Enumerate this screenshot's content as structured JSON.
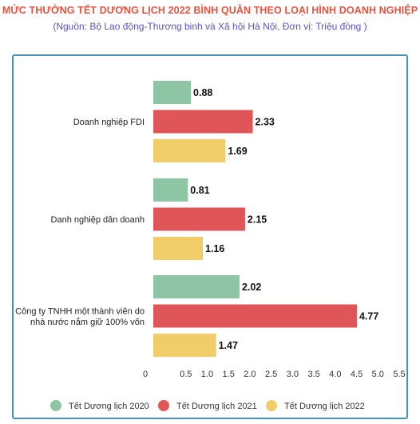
{
  "title": "MỨC THƯỞNG TẾT DƯƠNG LỊCH 2022 BÌNH QUÂN THEO LOẠI HÌNH DOANH NGHIỆP",
  "subtitle": "(Nguồn: Bộ Lao động-Thương binh và Xã hội Hà Nội, Đơn vị: Triệu đồng )",
  "chart_data": {
    "type": "bar",
    "orientation": "horizontal",
    "title": "MỨC THƯỞNG TẾT DƯƠNG LỊCH 2022 BÌNH QUÂN THEO LOẠI HÌNH DOANH NGHIỆP",
    "subtitle": "(Nguồn: Bộ Lao động-Thương binh và Xã hội Hà Nội, Đơn vị: Triệu đồng )",
    "categories": [
      [
        "Doanh nghiệp FDI"
      ],
      [
        "Danh nghiệp dân doanh"
      ],
      [
        "Công ty TNHH một thành viên do",
        "nhà nước nắm giữ 100% vốn"
      ]
    ],
    "series": [
      {
        "name": "Tết Dương lịch 2020",
        "color": "#8ec6a5",
        "values": [
          0.88,
          0.81,
          2.02
        ]
      },
      {
        "name": "Tết Dương lịch 2021",
        "color": "#e05558",
        "values": [
          2.33,
          2.15,
          4.77
        ]
      },
      {
        "name": "Tết Dương lịch 2022",
        "color": "#f1cd6a",
        "values": [
          1.69,
          1.16,
          1.47
        ]
      }
    ],
    "xlim": [
      0,
      5.5
    ],
    "xticks": [
      "0",
      "0.5",
      "1.0",
      "1.5",
      "2.0",
      "2.5",
      "3.0",
      "3.5",
      "4.0",
      "4.5",
      "5.0",
      "5.5"
    ],
    "legend_position": "bottom",
    "grid": false
  }
}
